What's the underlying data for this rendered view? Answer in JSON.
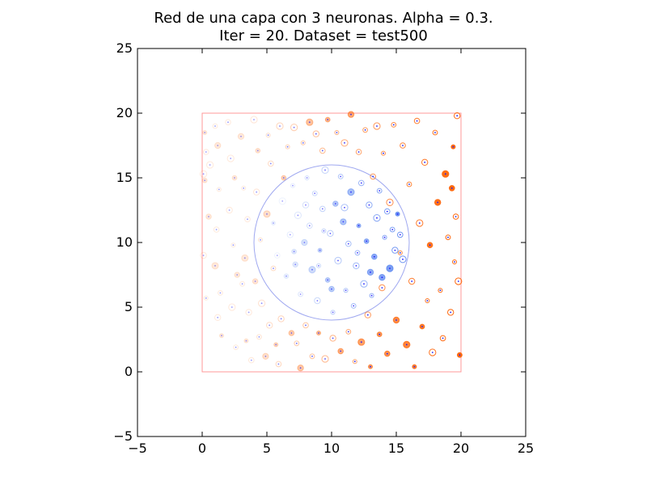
{
  "chart_data": {
    "type": "scatter",
    "title_lines": [
      "Red de una capa con 3 neuronas. Alpha = 0.3.",
      "Iter = 20. Dataset = test500"
    ],
    "xlabel": "",
    "ylabel": "",
    "xlim": [
      -5,
      25
    ],
    "ylim": [
      -5,
      25
    ],
    "x_ticks": [
      -5,
      0,
      5,
      10,
      15,
      20,
      25
    ],
    "y_ticks": [
      -5,
      0,
      5,
      10,
      15,
      20,
      25
    ],
    "x_tick_labels": [
      "−5",
      "0",
      "5",
      "10",
      "15",
      "20",
      "25"
    ],
    "y_tick_labels": [
      "−5",
      "0",
      "5",
      "10",
      "15",
      "20",
      "25"
    ],
    "grid": false,
    "legend": "none",
    "boundary_box": {
      "x": [
        0,
        20
      ],
      "y": [
        0,
        20
      ],
      "color": "#ff9999"
    },
    "boundary_circle": {
      "cx": 10,
      "cy": 10,
      "r": 6,
      "color": "#9fa8f0"
    },
    "colors": {
      "outside_class": "#ff6a10",
      "inside_class": "#5a86f0",
      "point_center": "#1a1aff",
      "axis": "#000000"
    },
    "series": [
      {
        "class": "outside",
        "points": [
          [
            0.2,
            18.5
          ],
          [
            0.3,
            17.0
          ],
          [
            0.1,
            15.3
          ],
          [
            0.2,
            14.8
          ],
          [
            0.1,
            9.0
          ],
          [
            0.3,
            5.7
          ],
          [
            0.5,
            12.0
          ],
          [
            0.6,
            16.0
          ],
          [
            1.0,
            19.0
          ],
          [
            1.2,
            17.5
          ],
          [
            1.3,
            14.1
          ],
          [
            1.1,
            11.0
          ],
          [
            1.0,
            8.2
          ],
          [
            1.4,
            6.1
          ],
          [
            1.2,
            4.2
          ],
          [
            1.5,
            2.8
          ],
          [
            2.0,
            19.3
          ],
          [
            2.2,
            16.5
          ],
          [
            2.5,
            15.0
          ],
          [
            2.1,
            12.5
          ],
          [
            2.4,
            9.8
          ],
          [
            2.7,
            7.5
          ],
          [
            2.3,
            5.0
          ],
          [
            2.6,
            1.9
          ],
          [
            3.0,
            18.2
          ],
          [
            3.2,
            14.2
          ],
          [
            3.5,
            11.8
          ],
          [
            3.3,
            8.8
          ],
          [
            3.1,
            6.8
          ],
          [
            3.6,
            4.6
          ],
          [
            3.4,
            2.4
          ],
          [
            3.8,
            0.9
          ],
          [
            4.0,
            19.5
          ],
          [
            4.3,
            17.1
          ],
          [
            4.2,
            13.9
          ],
          [
            4.5,
            10.2
          ],
          [
            4.1,
            7.0
          ],
          [
            4.6,
            5.3
          ],
          [
            4.4,
            2.7
          ],
          [
            4.9,
            1.2
          ],
          [
            5.1,
            18.3
          ],
          [
            5.3,
            16.1
          ],
          [
            5.0,
            12.2
          ],
          [
            5.5,
            8.0
          ],
          [
            5.2,
            3.6
          ],
          [
            5.7,
            2.1
          ],
          [
            5.9,
            0.6
          ],
          [
            6.0,
            19.0
          ],
          [
            6.3,
            15.0
          ],
          [
            6.1,
            4.1
          ],
          [
            6.6,
            17.4
          ],
          [
            6.9,
            3.0
          ],
          [
            7.1,
            18.9
          ],
          [
            7.3,
            2.2
          ],
          [
            7.6,
            0.3
          ],
          [
            7.8,
            17.7
          ],
          [
            8.0,
            3.6
          ],
          [
            8.3,
            19.3
          ],
          [
            8.5,
            1.2
          ],
          [
            8.8,
            18.4
          ],
          [
            9.0,
            3.0
          ],
          [
            9.3,
            17.1
          ],
          [
            9.5,
            1.0
          ],
          [
            9.7,
            19.5
          ],
          [
            10.1,
            2.6
          ],
          [
            10.4,
            18.5
          ],
          [
            10.7,
            1.6
          ],
          [
            11.0,
            17.7
          ],
          [
            11.3,
            3.1
          ],
          [
            11.5,
            19.9
          ],
          [
            11.8,
            0.8
          ],
          [
            12.1,
            17.0
          ],
          [
            12.3,
            2.3
          ],
          [
            12.6,
            18.7
          ],
          [
            12.8,
            4.4
          ],
          [
            13.0,
            0.4
          ],
          [
            13.2,
            15.1
          ],
          [
            13.5,
            19.0
          ],
          [
            13.7,
            2.9
          ],
          [
            13.9,
            6.5
          ],
          [
            14.0,
            16.9
          ],
          [
            14.3,
            1.4
          ],
          [
            14.5,
            13.1
          ],
          [
            14.8,
            19.1
          ],
          [
            15.0,
            4.0
          ],
          [
            15.3,
            9.2
          ],
          [
            15.5,
            17.5
          ],
          [
            15.8,
            2.1
          ],
          [
            16.0,
            14.5
          ],
          [
            16.2,
            7.0
          ],
          [
            16.4,
            0.4
          ],
          [
            16.6,
            19.4
          ],
          [
            16.8,
            11.5
          ],
          [
            17.0,
            3.5
          ],
          [
            17.2,
            16.2
          ],
          [
            17.4,
            5.5
          ],
          [
            17.6,
            9.8
          ],
          [
            17.8,
            1.5
          ],
          [
            18.0,
            18.5
          ],
          [
            18.2,
            13.1
          ],
          [
            18.4,
            6.3
          ],
          [
            18.6,
            2.6
          ],
          [
            18.8,
            15.3
          ],
          [
            19.0,
            10.4
          ],
          [
            19.2,
            4.6
          ],
          [
            19.4,
            17.4
          ],
          [
            19.6,
            12.0
          ],
          [
            19.8,
            7.0
          ],
          [
            19.9,
            1.3
          ],
          [
            19.7,
            19.8
          ],
          [
            19.5,
            8.5
          ],
          [
            19.3,
            14.2
          ]
        ]
      },
      {
        "class": "inside",
        "points": [
          [
            5.5,
            11.5
          ],
          [
            5.8,
            9.0
          ],
          [
            6.2,
            13.2
          ],
          [
            6.5,
            7.4
          ],
          [
            6.8,
            10.6
          ],
          [
            7.0,
            14.4
          ],
          [
            7.2,
            8.3
          ],
          [
            7.4,
            12.1
          ],
          [
            7.6,
            6.0
          ],
          [
            7.9,
            10.0
          ],
          [
            8.1,
            15.0
          ],
          [
            8.3,
            11.3
          ],
          [
            8.5,
            7.9
          ],
          [
            8.7,
            13.8
          ],
          [
            8.9,
            5.5
          ],
          [
            9.1,
            9.4
          ],
          [
            9.3,
            12.6
          ],
          [
            9.5,
            15.6
          ],
          [
            9.7,
            7.1
          ],
          [
            9.9,
            10.7
          ],
          [
            10.1,
            4.6
          ],
          [
            10.3,
            13.0
          ],
          [
            10.5,
            8.6
          ],
          [
            10.7,
            15.1
          ],
          [
            10.9,
            11.6
          ],
          [
            11.1,
            6.3
          ],
          [
            11.3,
            9.9
          ],
          [
            11.5,
            13.9
          ],
          [
            11.7,
            5.1
          ],
          [
            11.9,
            8.2
          ],
          [
            12.1,
            11.3
          ],
          [
            12.3,
            14.6
          ],
          [
            12.5,
            6.8
          ],
          [
            12.7,
            10.1
          ],
          [
            12.9,
            12.9
          ],
          [
            13.1,
            5.9
          ],
          [
            13.3,
            8.9
          ],
          [
            13.5,
            11.9
          ],
          [
            13.7,
            14.0
          ],
          [
            13.9,
            7.3
          ],
          [
            14.1,
            10.4
          ],
          [
            14.3,
            12.4
          ],
          [
            14.5,
            8.0
          ],
          [
            14.7,
            11.0
          ],
          [
            14.9,
            9.4
          ],
          [
            15.1,
            12.2
          ],
          [
            15.3,
            10.6
          ],
          [
            15.5,
            8.7
          ],
          [
            7.1,
            9.3
          ],
          [
            8.0,
            12.9
          ],
          [
            9.0,
            8.2
          ],
          [
            10.0,
            6.4
          ],
          [
            11.0,
            12.7
          ],
          [
            12.0,
            9.2
          ],
          [
            13.0,
            7.7
          ],
          [
            9.4,
            10.9
          ]
        ]
      }
    ]
  }
}
